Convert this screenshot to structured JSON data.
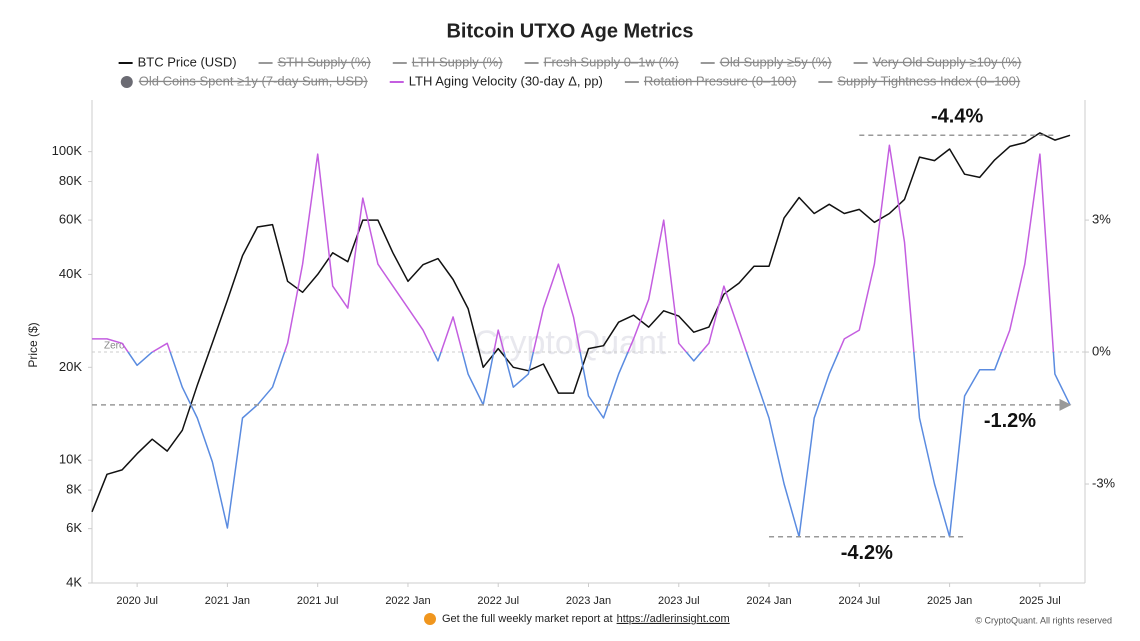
{
  "chart_data": {
    "type": "line",
    "title": "Bitcoin UTXO Age Metrics",
    "y_label": "Price ($)",
    "watermark": "CryptoQuant",
    "x": [
      "2020-04",
      "2020-05",
      "2020-06",
      "2020-07",
      "2020-08",
      "2020-09",
      "2020-10",
      "2020-11",
      "2020-12",
      "2021-01",
      "2021-02",
      "2021-03",
      "2021-04",
      "2021-05",
      "2021-06",
      "2021-07",
      "2021-08",
      "2021-09",
      "2021-10",
      "2021-11",
      "2021-12",
      "2022-01",
      "2022-02",
      "2022-03",
      "2022-04",
      "2022-05",
      "2022-06",
      "2022-07",
      "2022-08",
      "2022-09",
      "2022-10",
      "2022-11",
      "2022-12",
      "2023-01",
      "2023-02",
      "2023-03",
      "2023-04",
      "2023-05",
      "2023-06",
      "2023-07",
      "2023-08",
      "2023-09",
      "2023-10",
      "2023-11",
      "2023-12",
      "2024-01",
      "2024-02",
      "2024-03",
      "2024-04",
      "2024-05",
      "2024-06",
      "2024-07",
      "2024-08",
      "2024-09",
      "2024-10",
      "2024-11",
      "2024-12",
      "2025-01",
      "2025-02",
      "2025-03",
      "2025-04",
      "2025-05",
      "2025-06",
      "2025-07",
      "2025-08",
      "2025-09"
    ],
    "xlim": [
      "2020-04",
      "2025-10"
    ],
    "xticks": [
      {
        "value": "2020-07",
        "label": "2020 Jul"
      },
      {
        "value": "2021-01",
        "label": "2021 Jan"
      },
      {
        "value": "2021-07",
        "label": "2021 Jul"
      },
      {
        "value": "2022-01",
        "label": "2022 Jan"
      },
      {
        "value": "2022-07",
        "label": "2022 Jul"
      },
      {
        "value": "2023-01",
        "label": "2023 Jan"
      },
      {
        "value": "2023-07",
        "label": "2023 Jul"
      },
      {
        "value": "2024-01",
        "label": "2024 Jan"
      },
      {
        "value": "2024-07",
        "label": "2024 Jul"
      },
      {
        "value": "2025-01",
        "label": "2025 Jan"
      },
      {
        "value": "2025-07",
        "label": "2025 Jul"
      }
    ],
    "ylim": [
      4000,
      147000
    ],
    "log_scale": true,
    "yticks": [
      {
        "value": 4000,
        "label": "4K"
      },
      {
        "value": 6000,
        "label": "6K"
      },
      {
        "value": 8000,
        "label": "8K"
      },
      {
        "value": 10000,
        "label": "10K"
      },
      {
        "value": 20000,
        "label": "20K"
      },
      {
        "value": 40000,
        "label": "40K"
      },
      {
        "value": 60000,
        "label": "60K"
      },
      {
        "value": 80000,
        "label": "80K"
      },
      {
        "value": 100000,
        "label": "100K"
      }
    ],
    "y2lim": [
      -5.25,
      5.73
    ],
    "y2ticks": [
      {
        "value": 3,
        "label": "3%"
      },
      {
        "value": 0,
        "label": "0%"
      },
      {
        "value": -3,
        "label": "-3%"
      }
    ],
    "zero_line": {
      "value": 0,
      "label": "Zero"
    },
    "series": [
      {
        "name": "BTC Price (USD)",
        "color": "#111111",
        "values": [
          6800,
          9000,
          9300,
          10500,
          11700,
          10700,
          12500,
          17500,
          24000,
          33000,
          46000,
          57000,
          58000,
          38000,
          35000,
          40000,
          47000,
          44000,
          60000,
          60000,
          47000,
          38000,
          43000,
          45000,
          38500,
          31000,
          20000,
          23000,
          20000,
          19500,
          20500,
          16500,
          16500,
          23000,
          23500,
          28000,
          29500,
          27000,
          30500,
          29300,
          26000,
          27000,
          34500,
          37500,
          42500,
          42500,
          61000,
          71000,
          63000,
          67500,
          63000,
          65000,
          59000,
          63000,
          70000,
          96000,
          93500,
          102000,
          84500,
          82500,
          94000,
          104000,
          107000,
          115000,
          109000,
          113000
        ]
      },
      {
        "name": "STH Supply (%)",
        "color": "#888888",
        "hidden": true
      },
      {
        "name": "LTH Supply (%)",
        "color": "#888888",
        "hidden": true
      },
      {
        "name": "Fresh Supply 0–1w (%)",
        "color": "#888888",
        "hidden": true
      },
      {
        "name": "Old Supply ≥5y (%)",
        "color": "#888888",
        "hidden": true
      },
      {
        "name": "Very Old Supply ≥10y (%)",
        "color": "#888888",
        "hidden": true
      },
      {
        "name": "Old Coins Spent ≥1y (7-day Sum, USD)",
        "color": "#6b6b73",
        "hidden": true,
        "marker": "circle"
      },
      {
        "name": "LTH Aging Velocity (30-day Δ, pp)",
        "color": "#c45ee0",
        "negative_color": "#5a8be0",
        "axis": "y2",
        "values": [
          0.3,
          0.3,
          0.2,
          -0.3,
          0.0,
          0.2,
          -0.8,
          -1.5,
          -2.5,
          -4.0,
          -1.5,
          -1.2,
          -0.8,
          0.2,
          2.0,
          4.5,
          1.5,
          1.0,
          3.5,
          2.0,
          1.5,
          1.0,
          0.5,
          -0.2,
          0.8,
          -0.5,
          -1.2,
          0.5,
          -0.8,
          -0.5,
          1.0,
          2.0,
          0.8,
          -1.0,
          -1.5,
          -0.5,
          0.3,
          1.2,
          3.0,
          0.2,
          -0.2,
          0.2,
          1.5,
          0.5,
          -0.5,
          -1.5,
          -3.0,
          -4.2,
          -1.5,
          -0.5,
          0.3,
          0.5,
          2.0,
          4.7,
          2.5,
          -1.5,
          -3.0,
          -4.2,
          -1.0,
          -0.4,
          -0.4,
          0.5,
          2.0,
          4.5,
          -0.5,
          -1.2
        ]
      },
      {
        "name": "Rotation Pressure (0–100)",
        "color": "#888888",
        "hidden": true
      },
      {
        "name": "Supply Tightness Index (0–100)",
        "color": "#888888",
        "hidden": true
      }
    ],
    "annotations": [
      {
        "text": "-4.4%",
        "axis": "y",
        "level": 113000,
        "x": [
          "2024-07",
          "2025-08"
        ]
      },
      {
        "text": "-1.2%",
        "axis": "y2",
        "level": -1.2,
        "x": [
          "2020-04",
          "2025-09"
        ],
        "arrow": true
      },
      {
        "text": "-4.2%",
        "axis": "y2",
        "level": -4.2,
        "x": [
          "2024-01",
          "2025-02"
        ]
      }
    ]
  },
  "footer": {
    "text": "Get the full weekly market report at",
    "link": "https://adlerinsight.com",
    "copyright": "© CryptoQuant. All rights reserved"
  }
}
